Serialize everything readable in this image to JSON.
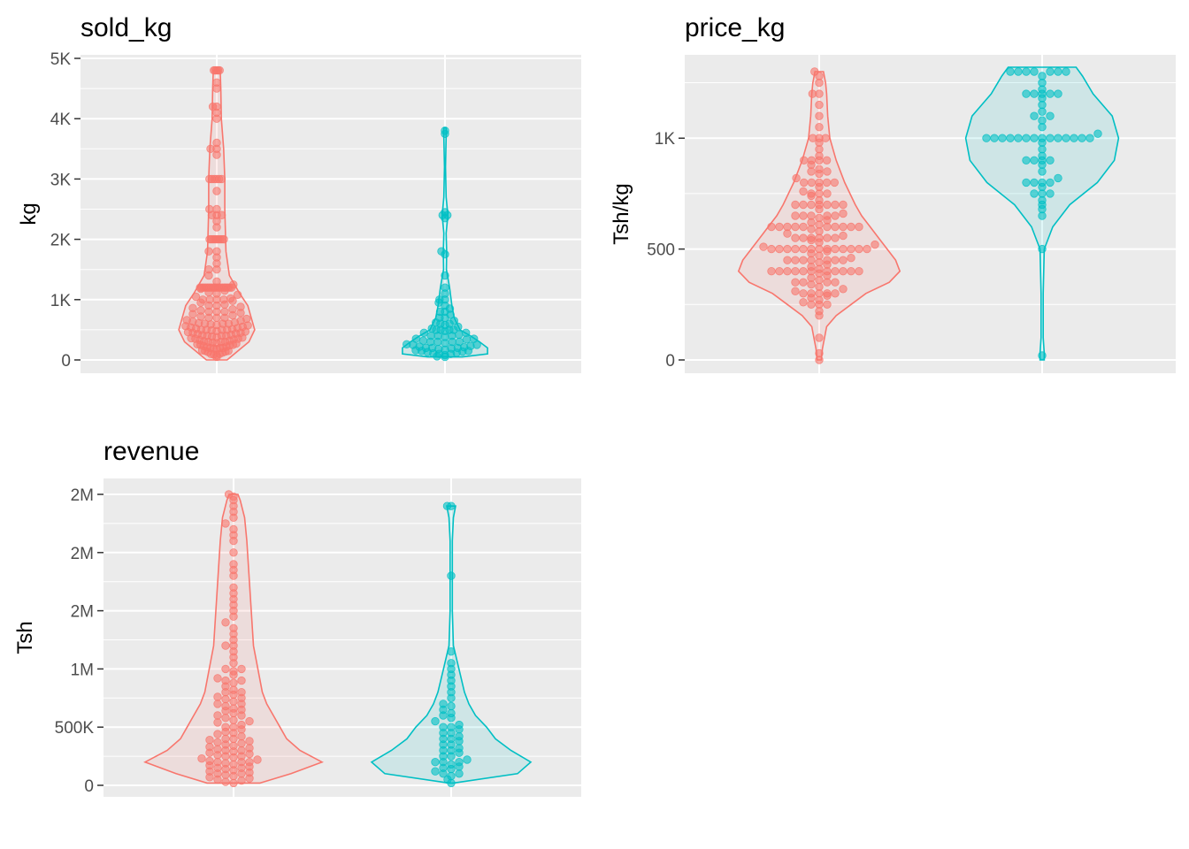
{
  "colors": {
    "group_a": "#F8766D",
    "group_b": "#00BFC4",
    "panel_bg": "#EBEBEB",
    "grid": "#FFFFFF",
    "tick_text": "#4D4D4D"
  },
  "chart_data": [
    {
      "type": "violin",
      "title": "sold_kg",
      "ylabel": "kg",
      "ylim": [
        0,
        5000
      ],
      "yticks": [
        0,
        1000,
        2000,
        3000,
        4000,
        5000
      ],
      "yticklabels": [
        "0",
        "1K",
        "2K",
        "3K",
        "4K",
        "5K"
      ],
      "grid": true,
      "legend": "none",
      "series": [
        {
          "color": "#F8766D",
          "profile": [
            [
              0,
              0.09
            ],
            [
              300,
              0.28
            ],
            [
              500,
              0.33
            ],
            [
              700,
              0.3
            ],
            [
              900,
              0.27
            ],
            [
              1100,
              0.2
            ],
            [
              1400,
              0.11
            ],
            [
              1800,
              0.08
            ],
            [
              2500,
              0.07
            ],
            [
              3000,
              0.07
            ],
            [
              3500,
              0.06
            ],
            [
              4000,
              0.04
            ],
            [
              4500,
              0.035
            ],
            [
              4800,
              0.03
            ]
          ],
          "values": [
            50,
            80,
            90,
            100,
            100,
            120,
            130,
            140,
            150,
            150,
            160,
            180,
            190,
            200,
            200,
            200,
            210,
            220,
            230,
            240,
            250,
            250,
            260,
            270,
            280,
            290,
            300,
            300,
            300,
            310,
            320,
            330,
            340,
            350,
            350,
            360,
            370,
            380,
            390,
            400,
            400,
            400,
            410,
            420,
            430,
            440,
            450,
            450,
            460,
            470,
            480,
            490,
            500,
            500,
            500,
            500,
            510,
            520,
            530,
            540,
            550,
            560,
            570,
            580,
            590,
            600,
            600,
            600,
            610,
            620,
            640,
            650,
            660,
            680,
            700,
            700,
            700,
            720,
            740,
            760,
            780,
            800,
            800,
            800,
            820,
            840,
            860,
            880,
            900,
            900,
            920,
            950,
            980,
            1000,
            1000,
            1000,
            1000,
            1020,
            1050,
            1080,
            1100,
            1120,
            1150,
            1180,
            1200,
            1200,
            1200,
            1200,
            1200,
            1200,
            1200,
            1200,
            1200,
            1200,
            1200,
            1200,
            1200,
            1200,
            1200,
            1200,
            1200,
            1200,
            1250,
            1300,
            1400,
            1500,
            1500,
            1600,
            1700,
            1800,
            1800,
            2000,
            2000,
            2000,
            2000,
            2000,
            2000,
            2000,
            2000,
            2000,
            2200,
            2300,
            2400,
            2400,
            2400,
            2500,
            2500,
            2800,
            3000,
            3000,
            3000,
            3000,
            3000,
            3000,
            3400,
            3500,
            3500,
            3600,
            4000,
            4100,
            4200,
            4200,
            4500,
            4600,
            4800,
            4800,
            4800,
            4800,
            4800
          ]
        },
        {
          "color": "#00BFC4",
          "profile": [
            [
              50,
              0.15
            ],
            [
              100,
              0.37
            ],
            [
              200,
              0.37
            ],
            [
              300,
              0.3
            ],
            [
              400,
              0.22
            ],
            [
              500,
              0.13
            ],
            [
              700,
              0.08
            ],
            [
              900,
              0.06
            ],
            [
              1200,
              0.04
            ],
            [
              1500,
              0.012
            ],
            [
              1800,
              0.015
            ],
            [
              2100,
              0.01
            ],
            [
              2400,
              0.025
            ],
            [
              2700,
              0.01
            ],
            [
              3200,
              0.005
            ],
            [
              3700,
              0.01
            ],
            [
              3850,
              0.01
            ]
          ],
          "values": [
            50,
            60,
            80,
            100,
            100,
            110,
            120,
            130,
            140,
            150,
            150,
            160,
            170,
            180,
            190,
            200,
            200,
            200,
            210,
            220,
            230,
            250,
            250,
            260,
            280,
            300,
            300,
            300,
            300,
            320,
            340,
            350,
            350,
            380,
            400,
            400,
            400,
            420,
            450,
            450,
            480,
            500,
            500,
            500,
            500,
            520,
            550,
            580,
            600,
            600,
            620,
            650,
            700,
            700,
            750,
            800,
            800,
            850,
            900,
            950,
            1000,
            1000,
            1100,
            1200,
            1400,
            1750,
            1800,
            2350,
            2400,
            2400,
            2450,
            3750,
            3800
          ]
        }
      ]
    },
    {
      "type": "violin",
      "title": "price_kg",
      "ylabel": "Tsh/kg",
      "ylim": [
        0,
        1320
      ],
      "yticks": [
        0,
        500,
        1000
      ],
      "yticklabels": [
        "0",
        "500",
        "1K"
      ],
      "grid": true,
      "legend": "none",
      "series": [
        {
          "color": "#F8766D",
          "profile": [
            [
              0,
              0.01
            ],
            [
              50,
              0.015
            ],
            [
              150,
              0.035
            ],
            [
              200,
              0.08
            ],
            [
              250,
              0.15
            ],
            [
              300,
              0.22
            ],
            [
              350,
              0.33
            ],
            [
              400,
              0.38
            ],
            [
              450,
              0.36
            ],
            [
              500,
              0.32
            ],
            [
              550,
              0.28
            ],
            [
              600,
              0.24
            ],
            [
              650,
              0.2
            ],
            [
              700,
              0.17
            ],
            [
              800,
              0.12
            ],
            [
              900,
              0.08
            ],
            [
              1000,
              0.05
            ],
            [
              1100,
              0.04
            ],
            [
              1200,
              0.035
            ],
            [
              1250,
              0.03
            ],
            [
              1300,
              0.02
            ]
          ],
          "values": [
            0,
            30,
            100,
            200,
            220,
            250,
            250,
            250,
            260,
            270,
            280,
            290,
            300,
            300,
            300,
            300,
            300,
            310,
            320,
            330,
            340,
            350,
            350,
            350,
            350,
            360,
            370,
            380,
            390,
            400,
            400,
            400,
            400,
            400,
            400,
            400,
            400,
            400,
            400,
            400,
            410,
            420,
            430,
            440,
            450,
            450,
            450,
            450,
            450,
            450,
            450,
            460,
            470,
            480,
            490,
            500,
            500,
            500,
            500,
            500,
            500,
            500,
            500,
            500,
            500,
            500,
            500,
            500,
            510,
            520,
            530,
            540,
            550,
            550,
            550,
            550,
            550,
            550,
            560,
            570,
            580,
            590,
            600,
            600,
            600,
            600,
            600,
            600,
            600,
            600,
            600,
            600,
            610,
            620,
            630,
            640,
            650,
            650,
            650,
            650,
            650,
            660,
            680,
            700,
            700,
            700,
            700,
            700,
            700,
            700,
            720,
            740,
            750,
            750,
            750,
            760,
            780,
            800,
            800,
            800,
            800,
            800,
            820,
            840,
            850,
            850,
            860,
            880,
            900,
            900,
            900,
            900,
            920,
            950,
            980,
            1000,
            1000,
            1000,
            1050,
            1100,
            1150,
            1200,
            1200,
            1250,
            1280,
            1300
          ]
        },
        {
          "color": "#00BFC4",
          "profile": [
            [
              0,
              0.01
            ],
            [
              30,
              0.01
            ],
            [
              100,
              0.005
            ],
            [
              300,
              0.005
            ],
            [
              500,
              0.01
            ],
            [
              600,
              0.05
            ],
            [
              700,
              0.13
            ],
            [
              800,
              0.26
            ],
            [
              900,
              0.34
            ],
            [
              1000,
              0.36
            ],
            [
              1100,
              0.33
            ],
            [
              1200,
              0.24
            ],
            [
              1280,
              0.19
            ],
            [
              1320,
              0.16
            ]
          ],
          "values": [
            20,
            500,
            650,
            680,
            700,
            720,
            750,
            750,
            750,
            780,
            800,
            800,
            800,
            800,
            820,
            850,
            880,
            900,
            900,
            900,
            900,
            920,
            950,
            980,
            1000,
            1000,
            1000,
            1000,
            1000,
            1000,
            1000,
            1000,
            1000,
            1000,
            1000,
            1000,
            1000,
            1000,
            1020,
            1050,
            1080,
            1100,
            1100,
            1120,
            1150,
            1180,
            1200,
            1200,
            1200,
            1200,
            1200,
            1220,
            1250,
            1280,
            1300,
            1300,
            1300,
            1300,
            1300,
            1300,
            1300
          ]
        }
      ]
    },
    {
      "type": "violin",
      "title": "revenue",
      "ylabel": "Tsh",
      "ylim": [
        0,
        2500000
      ],
      "yticks": [
        0,
        500000,
        1000000,
        1500000,
        2000000,
        2500000
      ],
      "yticklabels": [
        "0",
        "500K",
        "1M",
        "2M",
        "2M",
        "2M"
      ],
      "grid": true,
      "legend": "none",
      "series": [
        {
          "color": "#F8766D",
          "profile": [
            [
              20000,
              0.12
            ],
            [
              100000,
              0.26
            ],
            [
              200000,
              0.4
            ],
            [
              300000,
              0.3
            ],
            [
              400000,
              0.24
            ],
            [
              500000,
              0.21
            ],
            [
              600000,
              0.18
            ],
            [
              700000,
              0.15
            ],
            [
              800000,
              0.13
            ],
            [
              1000000,
              0.11
            ],
            [
              1200000,
              0.09
            ],
            [
              1500000,
              0.08
            ],
            [
              1800000,
              0.07
            ],
            [
              2100000,
              0.06
            ],
            [
              2300000,
              0.05
            ],
            [
              2450000,
              0.03
            ],
            [
              2500000,
              0.02
            ]
          ],
          "values": [
            20000,
            30000,
            40000,
            50000,
            60000,
            70000,
            80000,
            90000,
            100000,
            100000,
            110000,
            120000,
            130000,
            140000,
            150000,
            150000,
            160000,
            170000,
            180000,
            190000,
            200000,
            200000,
            200000,
            210000,
            220000,
            230000,
            240000,
            250000,
            250000,
            260000,
            270000,
            280000,
            290000,
            300000,
            300000,
            310000,
            320000,
            330000,
            340000,
            350000,
            360000,
            370000,
            380000,
            390000,
            400000,
            400000,
            420000,
            440000,
            450000,
            460000,
            480000,
            500000,
            500000,
            520000,
            540000,
            550000,
            560000,
            580000,
            600000,
            600000,
            620000,
            640000,
            650000,
            660000,
            680000,
            700000,
            700000,
            720000,
            740000,
            750000,
            760000,
            780000,
            800000,
            800000,
            820000,
            850000,
            880000,
            900000,
            900000,
            920000,
            950000,
            980000,
            1000000,
            1000000,
            1050000,
            1100000,
            1150000,
            1200000,
            1200000,
            1250000,
            1300000,
            1350000,
            1400000,
            1450000,
            1500000,
            1550000,
            1600000,
            1650000,
            1700000,
            1800000,
            1850000,
            1900000,
            2000000,
            2100000,
            2150000,
            2200000,
            2250000,
            2300000,
            2350000,
            2400000,
            2450000,
            2480000,
            2500000
          ]
        },
        {
          "color": "#00BFC4",
          "profile": [
            [
              20000,
              0.01
            ],
            [
              100000,
              0.3
            ],
            [
              200000,
              0.36
            ],
            [
              300000,
              0.27
            ],
            [
              400000,
              0.2
            ],
            [
              500000,
              0.16
            ],
            [
              600000,
              0.11
            ],
            [
              700000,
              0.08
            ],
            [
              800000,
              0.06
            ],
            [
              1000000,
              0.035
            ],
            [
              1200000,
              0.01
            ],
            [
              1500000,
              0.005
            ],
            [
              1800000,
              0.005
            ],
            [
              2100000,
              0.005
            ],
            [
              2300000,
              0.01
            ],
            [
              2400000,
              0.02
            ]
          ],
          "values": [
            20000,
            50000,
            80000,
            100000,
            100000,
            120000,
            140000,
            150000,
            160000,
            180000,
            200000,
            200000,
            200000,
            220000,
            250000,
            250000,
            280000,
            300000,
            300000,
            320000,
            350000,
            350000,
            380000,
            400000,
            400000,
            420000,
            450000,
            450000,
            480000,
            500000,
            500000,
            520000,
            550000,
            580000,
            600000,
            620000,
            650000,
            680000,
            700000,
            750000,
            800000,
            850000,
            900000,
            950000,
            1000000,
            1050000,
            1150000,
            1800000,
            2400000,
            2400000
          ]
        }
      ]
    }
  ]
}
